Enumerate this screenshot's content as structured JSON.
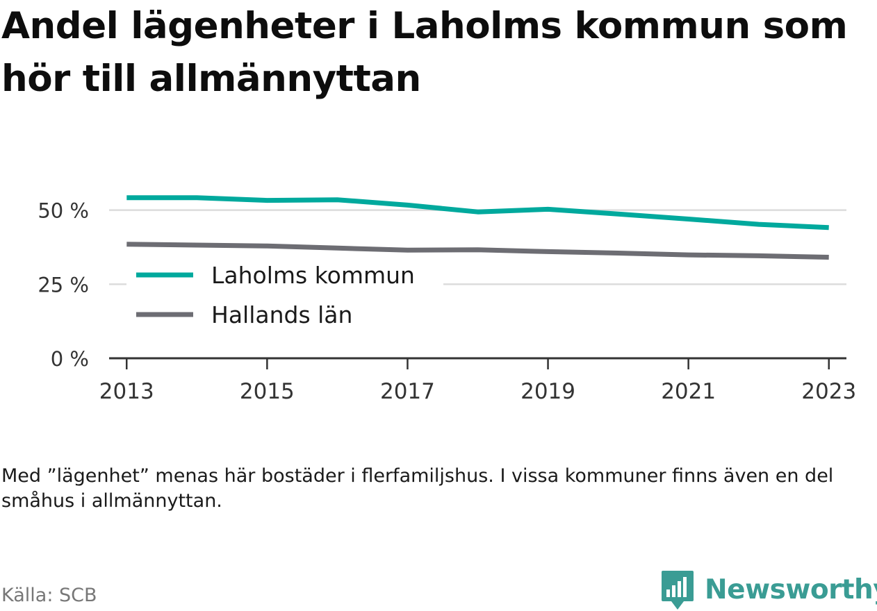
{
  "title": "Andel lägenheter i Laholms kommun som hör till allmännyttan",
  "note": "Med ”lägenhet” menas här bostäder i flerfamiljshus. I vissa kommuner finns även en del småhus i allmännyttan.",
  "source": "Källa: SCB",
  "brand": {
    "name": "Newsworthy",
    "icon": "bar-chart-speech-bubble-icon",
    "color": "#3a9c94"
  },
  "chart_data": {
    "type": "line",
    "x": [
      2013,
      2014,
      2015,
      2016,
      2017,
      2018,
      2019,
      2020,
      2021,
      2022,
      2023
    ],
    "series": [
      {
        "name": "Laholms kommun",
        "color": "#00a99d",
        "values": [
          54.2,
          54.2,
          53.3,
          53.5,
          51.7,
          49.4,
          50.3,
          48.7,
          47.0,
          45.2,
          44.1
        ]
      },
      {
        "name": "Hallands län",
        "color": "#6d6d73",
        "values": [
          38.5,
          38.2,
          37.9,
          37.2,
          36.5,
          36.6,
          36.0,
          35.5,
          34.9,
          34.6,
          34.1
        ]
      }
    ],
    "yticks": [
      0,
      25,
      50
    ],
    "ytick_labels": [
      "0 %",
      "25 %",
      "50 %"
    ],
    "xticks": [
      2013,
      2015,
      2017,
      2019,
      2021,
      2023
    ],
    "xtick_labels": [
      "2013",
      "2015",
      "2017",
      "2019",
      "2021",
      "2023"
    ],
    "ylim": [
      0,
      60
    ],
    "xlim": [
      2012.75,
      2023.25
    ],
    "grid": true,
    "legend_position": "left, over lower part of plot"
  }
}
